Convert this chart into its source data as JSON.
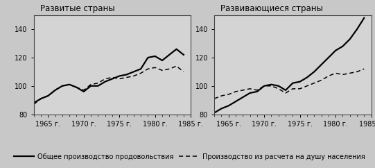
{
  "title_left": "Развитые страны",
  "title_right": "Развивающиеся страны",
  "years": [
    1963,
    1964,
    1965,
    1966,
    1967,
    1968,
    1969,
    1970,
    1971,
    1972,
    1973,
    1974,
    1975,
    1976,
    1977,
    1978,
    1979,
    1980,
    1981,
    1982,
    1983,
    1984
  ],
  "left_solid": [
    88,
    91,
    93,
    97,
    100,
    101,
    99,
    96,
    100,
    100,
    103,
    105,
    107,
    108,
    110,
    112,
    120,
    121,
    118,
    122,
    126,
    122
  ],
  "left_dashed": [
    87,
    91,
    93,
    97,
    100,
    101,
    99,
    97,
    101,
    102,
    105,
    106,
    105,
    106,
    107,
    109,
    112,
    113,
    111,
    112,
    114,
    110
  ],
  "right_solid": [
    81,
    84,
    86,
    89,
    92,
    95,
    96,
    100,
    101,
    100,
    97,
    102,
    103,
    106,
    110,
    115,
    120,
    125,
    128,
    133,
    140,
    148
  ],
  "right_dashed": [
    91,
    93,
    94,
    96,
    97,
    98,
    97,
    100,
    100,
    98,
    95,
    98,
    98,
    100,
    102,
    104,
    107,
    109,
    108,
    109,
    110,
    112
  ],
  "ylim": [
    80,
    150
  ],
  "yticks": [
    80,
    100,
    120,
    140
  ],
  "xtick_years": [
    1965,
    1970,
    1975,
    1980,
    1985
  ],
  "legend_solid": "Общее производство продовольствия",
  "legend_dashed": "Производство из расчета на душу населения",
  "panel_bg_color": "#d4d4d4",
  "fig_bg_color": "#c8c8c8",
  "line_color": "#000000",
  "title_fontsize": 8.5,
  "tick_fontsize": 7,
  "legend_fontsize": 7
}
